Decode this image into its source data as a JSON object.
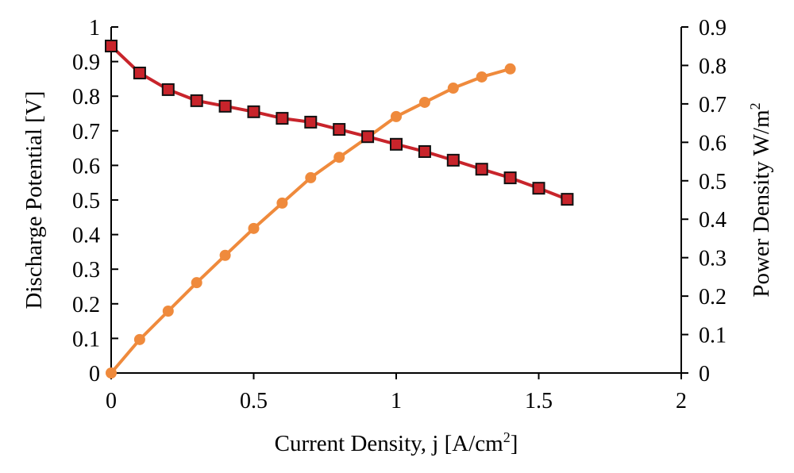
{
  "chart_data": {
    "type": "line",
    "title": "",
    "xlabel": "Current Density, j [A/cm",
    "xlabel_sup": "2",
    "xlabel_end": "]",
    "ylabel": "Discharge Potential [V]",
    "y2label": "Power Density W/m",
    "y2label_sup": "2",
    "xlim": [
      0,
      2
    ],
    "ylim": [
      0,
      1
    ],
    "y2lim": [
      0,
      0.9
    ],
    "grid": false,
    "x_ticks": [
      "0",
      "0.5",
      "1",
      "1.5",
      "2"
    ],
    "y_ticks": [
      "0",
      "0.1",
      "0.2",
      "0.3",
      "0.4",
      "0.5",
      "0.6",
      "0.7",
      "0.8",
      "0.9",
      "1"
    ],
    "y2_ticks": [
      "0",
      "0.1",
      "0.2",
      "0.3",
      "0.4",
      "0.5",
      "0.6",
      "0.7",
      "0.8",
      "0.9"
    ],
    "series": [
      {
        "axis": "left",
        "marker": "square",
        "color": "#c8242b",
        "x": [
          0,
          0.1,
          0.2,
          0.3,
          0.4,
          0.5,
          0.6,
          0.7,
          0.8,
          0.9,
          1.0,
          1.1,
          1.2,
          1.3,
          1.4,
          1.5,
          1.6
        ],
        "y": [
          0.945,
          0.867,
          0.819,
          0.787,
          0.771,
          0.755,
          0.736,
          0.725,
          0.704,
          0.683,
          0.661,
          0.64,
          0.615,
          0.589,
          0.564,
          0.534,
          0.502
        ]
      },
      {
        "axis": "right",
        "marker": "circle",
        "color": "#ef8a3c",
        "x": [
          0,
          0.1,
          0.2,
          0.3,
          0.4,
          0.5,
          0.6,
          0.7,
          0.8,
          0.9,
          1.0,
          1.1,
          1.2,
          1.3,
          1.4
        ],
        "y": [
          0,
          0.087,
          0.161,
          0.235,
          0.306,
          0.376,
          0.442,
          0.508,
          0.561,
          0.613,
          0.667,
          0.704,
          0.741,
          0.77,
          0.791
        ]
      }
    ]
  }
}
